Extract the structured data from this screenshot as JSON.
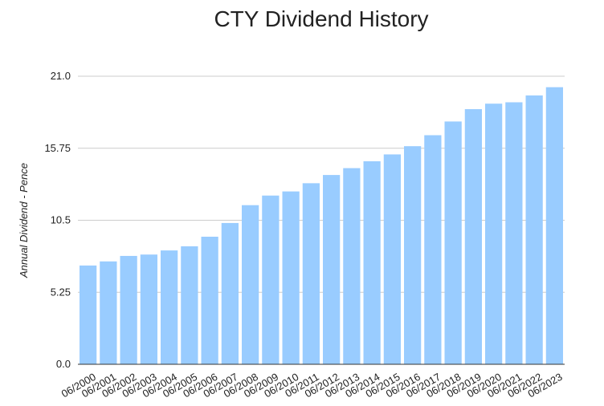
{
  "chart_data": {
    "type": "bar",
    "title": "CTY Dividend History",
    "xlabel": "",
    "ylabel": "Annual Dividend - Pence",
    "ylim": [
      0,
      21
    ],
    "y_ticks": [
      "0.0",
      "5.25",
      "10.5",
      "15.75",
      "21.0"
    ],
    "grid": true,
    "bar_color": "#99ccff",
    "gridline_color": "#cccccc",
    "categories": [
      "06/2000",
      "06/2001",
      "06/2002",
      "06/2003",
      "06/2004",
      "06/2005",
      "06/2006",
      "06/2007",
      "06/2008",
      "06/2009",
      "06/2010",
      "06/2011",
      "06/2012",
      "06/2013",
      "06/2014",
      "06/2015",
      "06/2016",
      "06/2017",
      "06/2018",
      "06/2019",
      "06/2020",
      "06/2021",
      "06/2022",
      "06/2023"
    ],
    "values": [
      7.2,
      7.5,
      7.9,
      8.0,
      8.3,
      8.6,
      9.3,
      10.3,
      11.6,
      12.3,
      12.6,
      13.2,
      13.8,
      14.3,
      14.8,
      15.3,
      15.9,
      16.7,
      17.7,
      18.6,
      19.0,
      19.1,
      19.6,
      20.2
    ]
  }
}
